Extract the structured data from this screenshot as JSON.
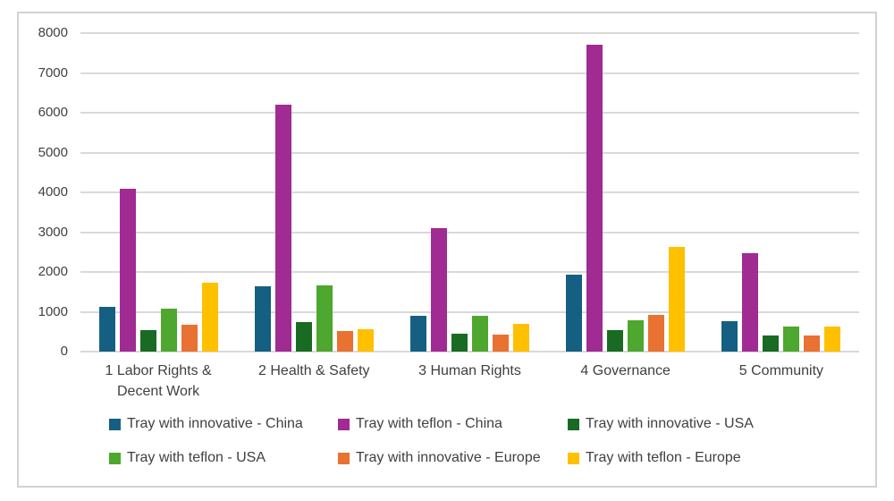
{
  "chart_data": {
    "type": "bar",
    "title": "",
    "categories": [
      "1 Labor Rights & Decent Work",
      "2 Health & Safety",
      "3 Human Rights",
      "4 Governance",
      "5 Community"
    ],
    "series": [
      {
        "name": "Tray with innovative - China",
        "color": "#156082",
        "values": [
          1130,
          1650,
          900,
          1930,
          775
        ]
      },
      {
        "name": "Tray with teflon - China",
        "color": "#A02B93",
        "values": [
          4080,
          6200,
          3100,
          7710,
          2480
        ]
      },
      {
        "name": "Tray with innovative - USA",
        "color": "#196B24",
        "values": [
          550,
          750,
          460,
          550,
          410
        ]
      },
      {
        "name": "Tray with teflon - USA",
        "color": "#4EA72E",
        "values": [
          1080,
          1670,
          910,
          780,
          620
        ]
      },
      {
        "name": "Tray with innovative - Europe",
        "color": "#E97132",
        "values": [
          680,
          520,
          420,
          930,
          410
        ]
      },
      {
        "name": "Tray with teflon - Europe",
        "color": "#FFC000",
        "values": [
          1730,
          560,
          700,
          2630,
          640
        ]
      }
    ],
    "y_axis": {
      "min": 0,
      "max": 8000,
      "step": 1000,
      "ticks": [
        "0",
        "1000",
        "2000",
        "3000",
        "4000",
        "5000",
        "6000",
        "7000",
        "8000"
      ]
    },
    "grid": true,
    "legend_position": "bottom",
    "legend_rows": [
      [
        0,
        1,
        2
      ],
      [
        3,
        4,
        5
      ]
    ],
    "colors": {
      "gridline": "#D9D9D9",
      "axis_text": "#404040",
      "frame_border": "#D2D2D2",
      "background": "#FFFFFF"
    }
  }
}
